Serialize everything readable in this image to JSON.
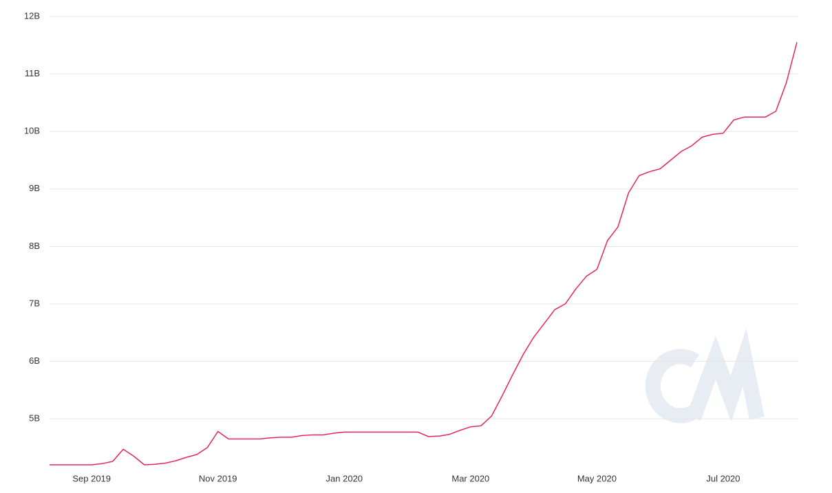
{
  "chart_data": {
    "type": "line",
    "categories": [
      null,
      null,
      null,
      null,
      "Sep 2019",
      null,
      null,
      null,
      null,
      null,
      null,
      null,
      null,
      null,
      null,
      null,
      "Nov 2019",
      null,
      null,
      null,
      null,
      null,
      null,
      null,
      null,
      null,
      null,
      null,
      "Jan 2020",
      null,
      null,
      null,
      null,
      null,
      null,
      null,
      null,
      null,
      null,
      null,
      "Mar 2020",
      null,
      null,
      null,
      null,
      null,
      null,
      null,
      null,
      null,
      null,
      null,
      "May 2020",
      null,
      null,
      null,
      null,
      null,
      null,
      null,
      null,
      null,
      null,
      null,
      "Jul 2020",
      null,
      null,
      null,
      null,
      null,
      null,
      null
    ],
    "series": [
      {
        "color": "#e8245a",
        "values": [
          4.2,
          4.2,
          4.2,
          4.2,
          4.2,
          4.22,
          4.26,
          4.47,
          4.35,
          4.2,
          4.21,
          4.23,
          4.27,
          4.33,
          4.38,
          4.5,
          4.78,
          4.65,
          4.65,
          4.65,
          4.65,
          4.67,
          4.68,
          4.68,
          4.71,
          4.72,
          4.72,
          4.75,
          4.77,
          4.77,
          4.77,
          4.77,
          4.77,
          4.77,
          4.77,
          4.77,
          4.69,
          4.7,
          4.73,
          4.8,
          4.86,
          4.88,
          5.05,
          5.4,
          5.77,
          6.12,
          6.42,
          6.66,
          6.9,
          7.0,
          7.26,
          7.48,
          7.6,
          8.1,
          8.34,
          8.93,
          9.23,
          9.3,
          9.35,
          9.5,
          9.65,
          9.75,
          9.9,
          9.95,
          9.97,
          10.2,
          10.25,
          10.25,
          10.25,
          10.35,
          10.85,
          11.55
        ]
      }
    ],
    "ylim": [
      4.2,
      12
    ],
    "yticks": [
      {
        "value": 5,
        "label": "5B"
      },
      {
        "value": 6,
        "label": "6B"
      },
      {
        "value": 7,
        "label": "7B"
      },
      {
        "value": 8,
        "label": "8B"
      },
      {
        "value": 9,
        "label": "9B"
      },
      {
        "value": 10,
        "label": "10B"
      },
      {
        "value": 11,
        "label": "11B"
      },
      {
        "value": 12,
        "label": "12B"
      }
    ],
    "grid": true
  }
}
